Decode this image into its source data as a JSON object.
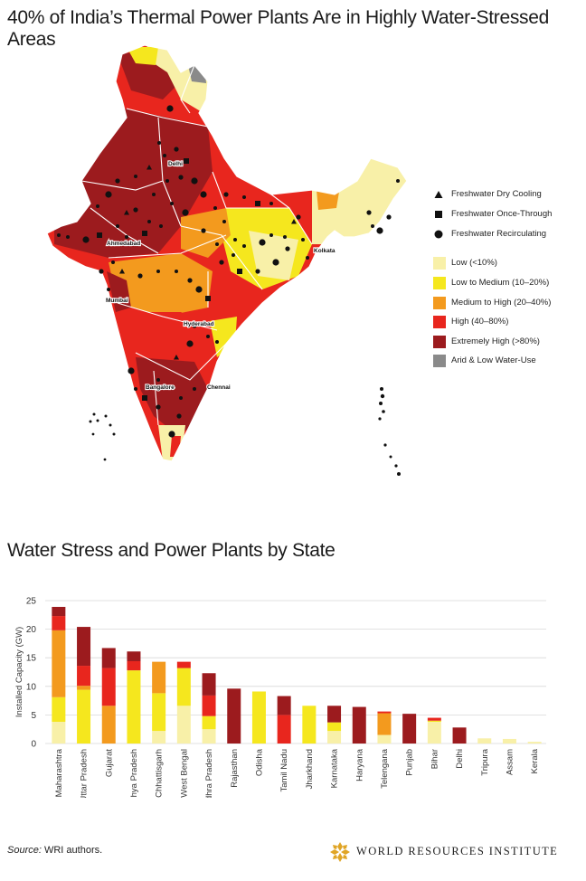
{
  "map": {
    "title": "40% of India’s Thermal Power Plants Are in Highly Water-Stressed Areas",
    "city_labels": [
      "Delhi",
      "Ahmedabad",
      "Kolkata",
      "Mumbai",
      "Hyderabad",
      "Bangalore",
      "Chennai"
    ],
    "legend": {
      "cooling": [
        {
          "label": "Freshwater Dry Cooling",
          "icon": "triangle-icon"
        },
        {
          "label": "Freshwater Once-Through",
          "icon": "square-icon"
        },
        {
          "label": "Freshwater Recirculating",
          "icon": "circle-icon"
        }
      ],
      "stress": [
        {
          "label": "Low (<10%)",
          "color": "#f8f0a8"
        },
        {
          "label": "Low to Medium (10–20%)",
          "color": "#f5e71e"
        },
        {
          "label": "Medium to High (20–40%)",
          "color": "#f39a1e"
        },
        {
          "label": "High (40–80%)",
          "color": "#e8261e"
        },
        {
          "label": "Extremely High (>80%)",
          "color": "#9c1b1e"
        },
        {
          "label": "Arid & Low Water-Use",
          "color": "#8a8a8a"
        }
      ]
    }
  },
  "chart_data": {
    "type": "bar",
    "stacked": true,
    "title": "Water Stress and Power Plants by State",
    "ylabel": "Installed Capacity (GW)",
    "ylim": [
      0,
      25
    ],
    "yticks": [
      0,
      5,
      10,
      15,
      20,
      25
    ],
    "grid": true,
    "categories": [
      "Maharashtra",
      "Uttar Pradesh",
      "Gujarat",
      "Madhya Pradesh",
      "Chhattisgarh",
      "West Bengal",
      "Andhra Pradesh",
      "Rajasthan",
      "Odisha",
      "Tamil Nadu",
      "Jharkhand",
      "Karnataka",
      "Haryana",
      "Telengana",
      "Punjab",
      "Bihar",
      "Delhi",
      "Tripura",
      "Assam",
      "Kerala"
    ],
    "series": [
      {
        "color": "#f8f0a8",
        "values": [
          3.8,
          0,
          0,
          0,
          2.2,
          6.6,
          2.5,
          0,
          0,
          0,
          0,
          2.2,
          0,
          1.5,
          0,
          3.8,
          0,
          0.9,
          0.8,
          0.3
        ]
      },
      {
        "color": "#f5e71e",
        "values": [
          4.3,
          9.4,
          0,
          12.8,
          6.6,
          6.6,
          2.3,
          0,
          9.1,
          0,
          6.6,
          1.5,
          0,
          0,
          0,
          0.2,
          0,
          0,
          0,
          0
        ]
      },
      {
        "color": "#f39a1e",
        "values": [
          11.7,
          0.7,
          6.6,
          0,
          5.5,
          0,
          0,
          0,
          0,
          0,
          0,
          0,
          0,
          3.8,
          0,
          0,
          0,
          0,
          0,
          0
        ]
      },
      {
        "color": "#e8261e",
        "values": [
          2.5,
          3.5,
          6.6,
          1.6,
          0,
          1.1,
          3.6,
          0,
          0,
          5.0,
          0,
          0,
          0,
          0.3,
          0,
          0.5,
          0,
          0,
          0,
          0
        ]
      },
      {
        "color": "#9c1b1e",
        "values": [
          1.6,
          6.8,
          3.5,
          1.7,
          0,
          0,
          3.9,
          9.6,
          0,
          3.3,
          0,
          2.9,
          6.4,
          0,
          5.2,
          0,
          2.8,
          0,
          0,
          0
        ]
      }
    ]
  },
  "footer": {
    "source_label": "Source:",
    "source_text": " WRI authors.",
    "org": "WORLD RESOURCES INSTITUTE"
  }
}
